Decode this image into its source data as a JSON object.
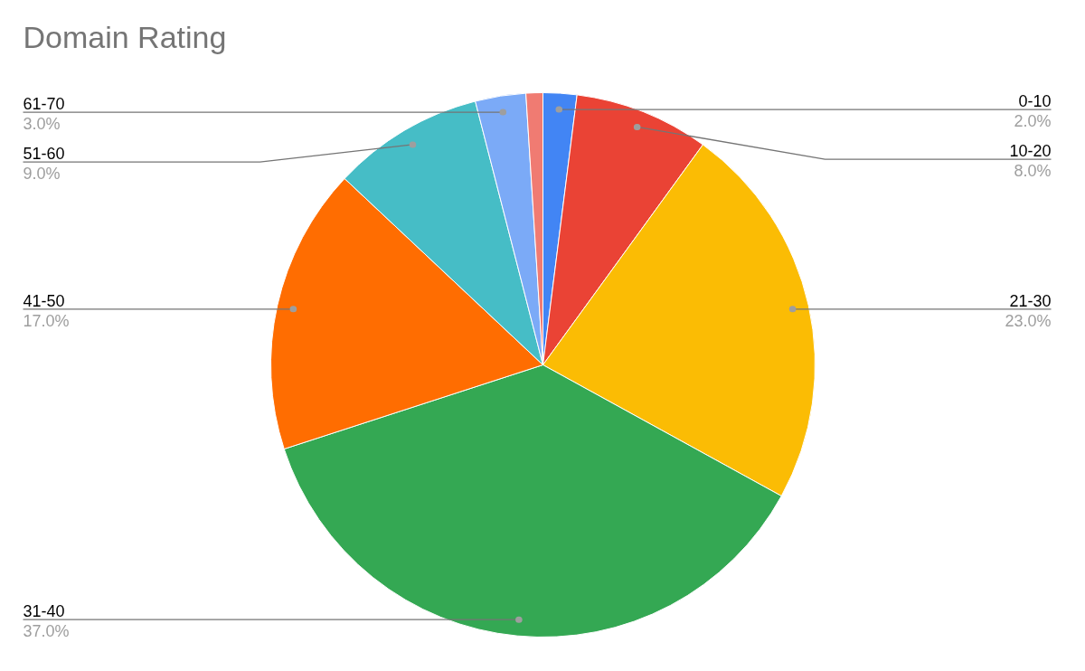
{
  "chart_data": {
    "type": "pie",
    "title": "Domain Rating",
    "categories": [
      "0-10",
      "10-20",
      "21-30",
      "31-40",
      "41-50",
      "51-60",
      "61-70",
      null
    ],
    "values": [
      2,
      8,
      23,
      37,
      17,
      9,
      3,
      1
    ],
    "colors": [
      "#4285f4",
      "#ea4335",
      "#fbbc04",
      "#34a853",
      "#ff6d01",
      "#46bdc6",
      "#7baaf7",
      "#f07b72"
    ],
    "value_labels": [
      "2.0%",
      "8.0%",
      "23.0%",
      "37.0%",
      "17.0%",
      "9.0%",
      "3.0%",
      null
    ]
  }
}
